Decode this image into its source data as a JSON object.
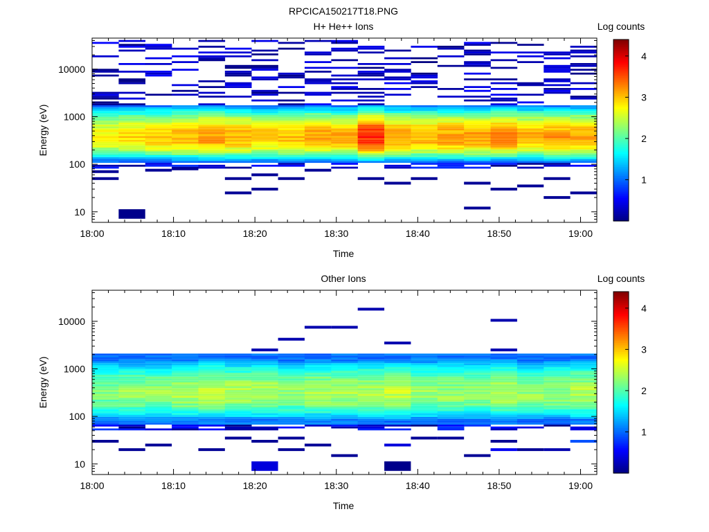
{
  "figure_title": "RPCICA150217T18.PNG",
  "colormap": [
    "#00007f",
    "#0000ff",
    "#007fff",
    "#00ffff",
    "#7fff7f",
    "#ffff00",
    "#ff7f00",
    "#ff0000",
    "#7f0000"
  ],
  "chart_data": [
    {
      "type": "heatmap",
      "title": "H+ He++ Ions",
      "xlabel": "Time",
      "ylabel": "Energy (eV)",
      "colorbar_label": "Log counts",
      "x_ticks": [
        "18:00",
        "18:10",
        "18:20",
        "18:30",
        "18:40",
        "18:50",
        "19:00"
      ],
      "y_ticks": [
        "10",
        "100",
        "1000",
        "10000"
      ],
      "colorbar_ticks": [
        "1",
        "2",
        "3",
        "4"
      ],
      "xlim": [
        "18:00",
        "19:02"
      ],
      "ylim": [
        6,
        45000
      ],
      "y_scale": "log",
      "clim": [
        0,
        4.4
      ],
      "grid": false,
      "band": {
        "e_low": 110,
        "e_high": 1800,
        "peak_energy": 360,
        "peak_log_counts": [
          2.8,
          2.9,
          3.0,
          3.1,
          3.2,
          3.1,
          3.0,
          3.0,
          3.2,
          3.1,
          3.7,
          3.2,
          3.1,
          3.2,
          3.2,
          3.3,
          3.1,
          3.2,
          3.2
        ]
      },
      "sparse_seed": 17,
      "sparse_high_density": 0.55,
      "isolated_points": [
        {
          "time": "18:06",
          "energy": 9,
          "log_counts": 0.05
        }
      ],
      "low_energy_points": [
        {
          "time": "18:02",
          "energy": 50,
          "log_counts": 0.1
        },
        {
          "time": "18:02",
          "energy": 70,
          "log_counts": 0.1
        },
        {
          "time": "18:09",
          "energy": 75,
          "log_counts": 0.1
        },
        {
          "time": "18:12",
          "energy": 80,
          "log_counts": 0.1
        },
        {
          "time": "18:19",
          "energy": 25,
          "log_counts": 0.1
        },
        {
          "time": "18:19",
          "energy": 50,
          "log_counts": 0.1
        },
        {
          "time": "18:22",
          "energy": 30,
          "log_counts": 0.1
        },
        {
          "time": "18:22",
          "energy": 60,
          "log_counts": 0.1
        },
        {
          "time": "18:26",
          "energy": 50,
          "log_counts": 0.1
        },
        {
          "time": "18:29",
          "energy": 75,
          "log_counts": 0.1
        },
        {
          "time": "18:35",
          "energy": 50,
          "log_counts": 0.1
        },
        {
          "time": "18:38",
          "energy": 40,
          "log_counts": 0.1
        },
        {
          "time": "18:41",
          "energy": 50,
          "log_counts": 0.1
        },
        {
          "time": "18:48",
          "energy": 12,
          "log_counts": 0.1
        },
        {
          "time": "18:48",
          "energy": 40,
          "log_counts": 0.1
        },
        {
          "time": "18:51",
          "energy": 30,
          "log_counts": 0.1
        },
        {
          "time": "18:54",
          "energy": 35,
          "log_counts": 0.1
        },
        {
          "time": "18:58",
          "energy": 20,
          "log_counts": 0.1
        },
        {
          "time": "18:58",
          "energy": 50,
          "log_counts": 0.1
        },
        {
          "time": "19:01",
          "energy": 25,
          "log_counts": 0.1
        }
      ]
    },
    {
      "type": "heatmap",
      "title": "Other Ions",
      "xlabel": "Time",
      "ylabel": "Energy (eV)",
      "colorbar_label": "Log counts",
      "x_ticks": [
        "18:00",
        "18:10",
        "18:20",
        "18:30",
        "18:40",
        "18:50",
        "19:00"
      ],
      "y_ticks": [
        "10",
        "100",
        "1000",
        "10000"
      ],
      "colorbar_ticks": [
        "1",
        "2",
        "3",
        "4"
      ],
      "xlim": [
        "18:00",
        "19:02"
      ],
      "ylim": [
        6,
        45000
      ],
      "y_scale": "log",
      "clim": [
        0,
        4.4
      ],
      "grid": false,
      "band": {
        "e_low": 70,
        "e_high": 2000,
        "peak_energy": 300,
        "peak_log_counts": [
          2.2,
          2.3,
          2.3,
          2.4,
          2.5,
          2.4,
          2.4,
          2.3,
          2.4,
          2.4,
          2.4,
          2.5,
          2.3,
          2.3,
          2.3,
          2.4,
          2.3,
          2.3,
          2.4
        ]
      },
      "sparse_seed": 41,
      "sparse_high_density": 0.0,
      "isolated_points": [
        {
          "time": "18:20",
          "energy": 9,
          "log_counts": 0.4
        },
        {
          "time": "18:38",
          "energy": 9,
          "log_counts": 0.05
        },
        {
          "time": "18:35",
          "energy": 18000,
          "log_counts": 0.2
        },
        {
          "time": "18:32",
          "energy": 7500,
          "log_counts": 0.2
        },
        {
          "time": "18:28",
          "energy": 7500,
          "log_counts": 0.2
        },
        {
          "time": "18:52",
          "energy": 10500,
          "log_counts": 0.2
        },
        {
          "time": "18:25",
          "energy": 4200,
          "log_counts": 0.2
        },
        {
          "time": "18:38",
          "energy": 3500,
          "log_counts": 0.2
        },
        {
          "time": "18:52",
          "energy": 2500,
          "log_counts": 0.2
        },
        {
          "time": "18:22",
          "energy": 2500,
          "log_counts": 0.2
        }
      ],
      "low_energy_points": [
        {
          "time": "18:02",
          "energy": 30,
          "log_counts": 0.1
        },
        {
          "time": "18:06",
          "energy": 20,
          "log_counts": 0.1
        },
        {
          "time": "18:09",
          "energy": 25,
          "log_counts": 0.1
        },
        {
          "time": "18:16",
          "energy": 20,
          "log_counts": 0.1
        },
        {
          "time": "18:19",
          "energy": 35,
          "log_counts": 0.1
        },
        {
          "time": "18:22",
          "energy": 30,
          "log_counts": 0.1
        },
        {
          "time": "18:26",
          "energy": 20,
          "log_counts": 0.1
        },
        {
          "time": "18:26",
          "energy": 35,
          "log_counts": 0.1
        },
        {
          "time": "18:29",
          "energy": 25,
          "log_counts": 0.1
        },
        {
          "time": "18:32",
          "energy": 15,
          "log_counts": 0.1
        },
        {
          "time": "18:38",
          "energy": 25,
          "log_counts": 0.4
        },
        {
          "time": "18:41",
          "energy": 35,
          "log_counts": 0.1
        },
        {
          "time": "18:44",
          "energy": 35,
          "log_counts": 0.1
        },
        {
          "time": "18:48",
          "energy": 15,
          "log_counts": 0.1
        },
        {
          "time": "18:51",
          "energy": 20,
          "log_counts": 0.5
        },
        {
          "time": "18:51",
          "energy": 30,
          "log_counts": 0.1
        },
        {
          "time": "18:54",
          "energy": 20,
          "log_counts": 0.1
        },
        {
          "time": "18:58",
          "energy": 20,
          "log_counts": 0.2
        },
        {
          "time": "19:01",
          "energy": 30,
          "log_counts": 0.9
        }
      ]
    }
  ]
}
